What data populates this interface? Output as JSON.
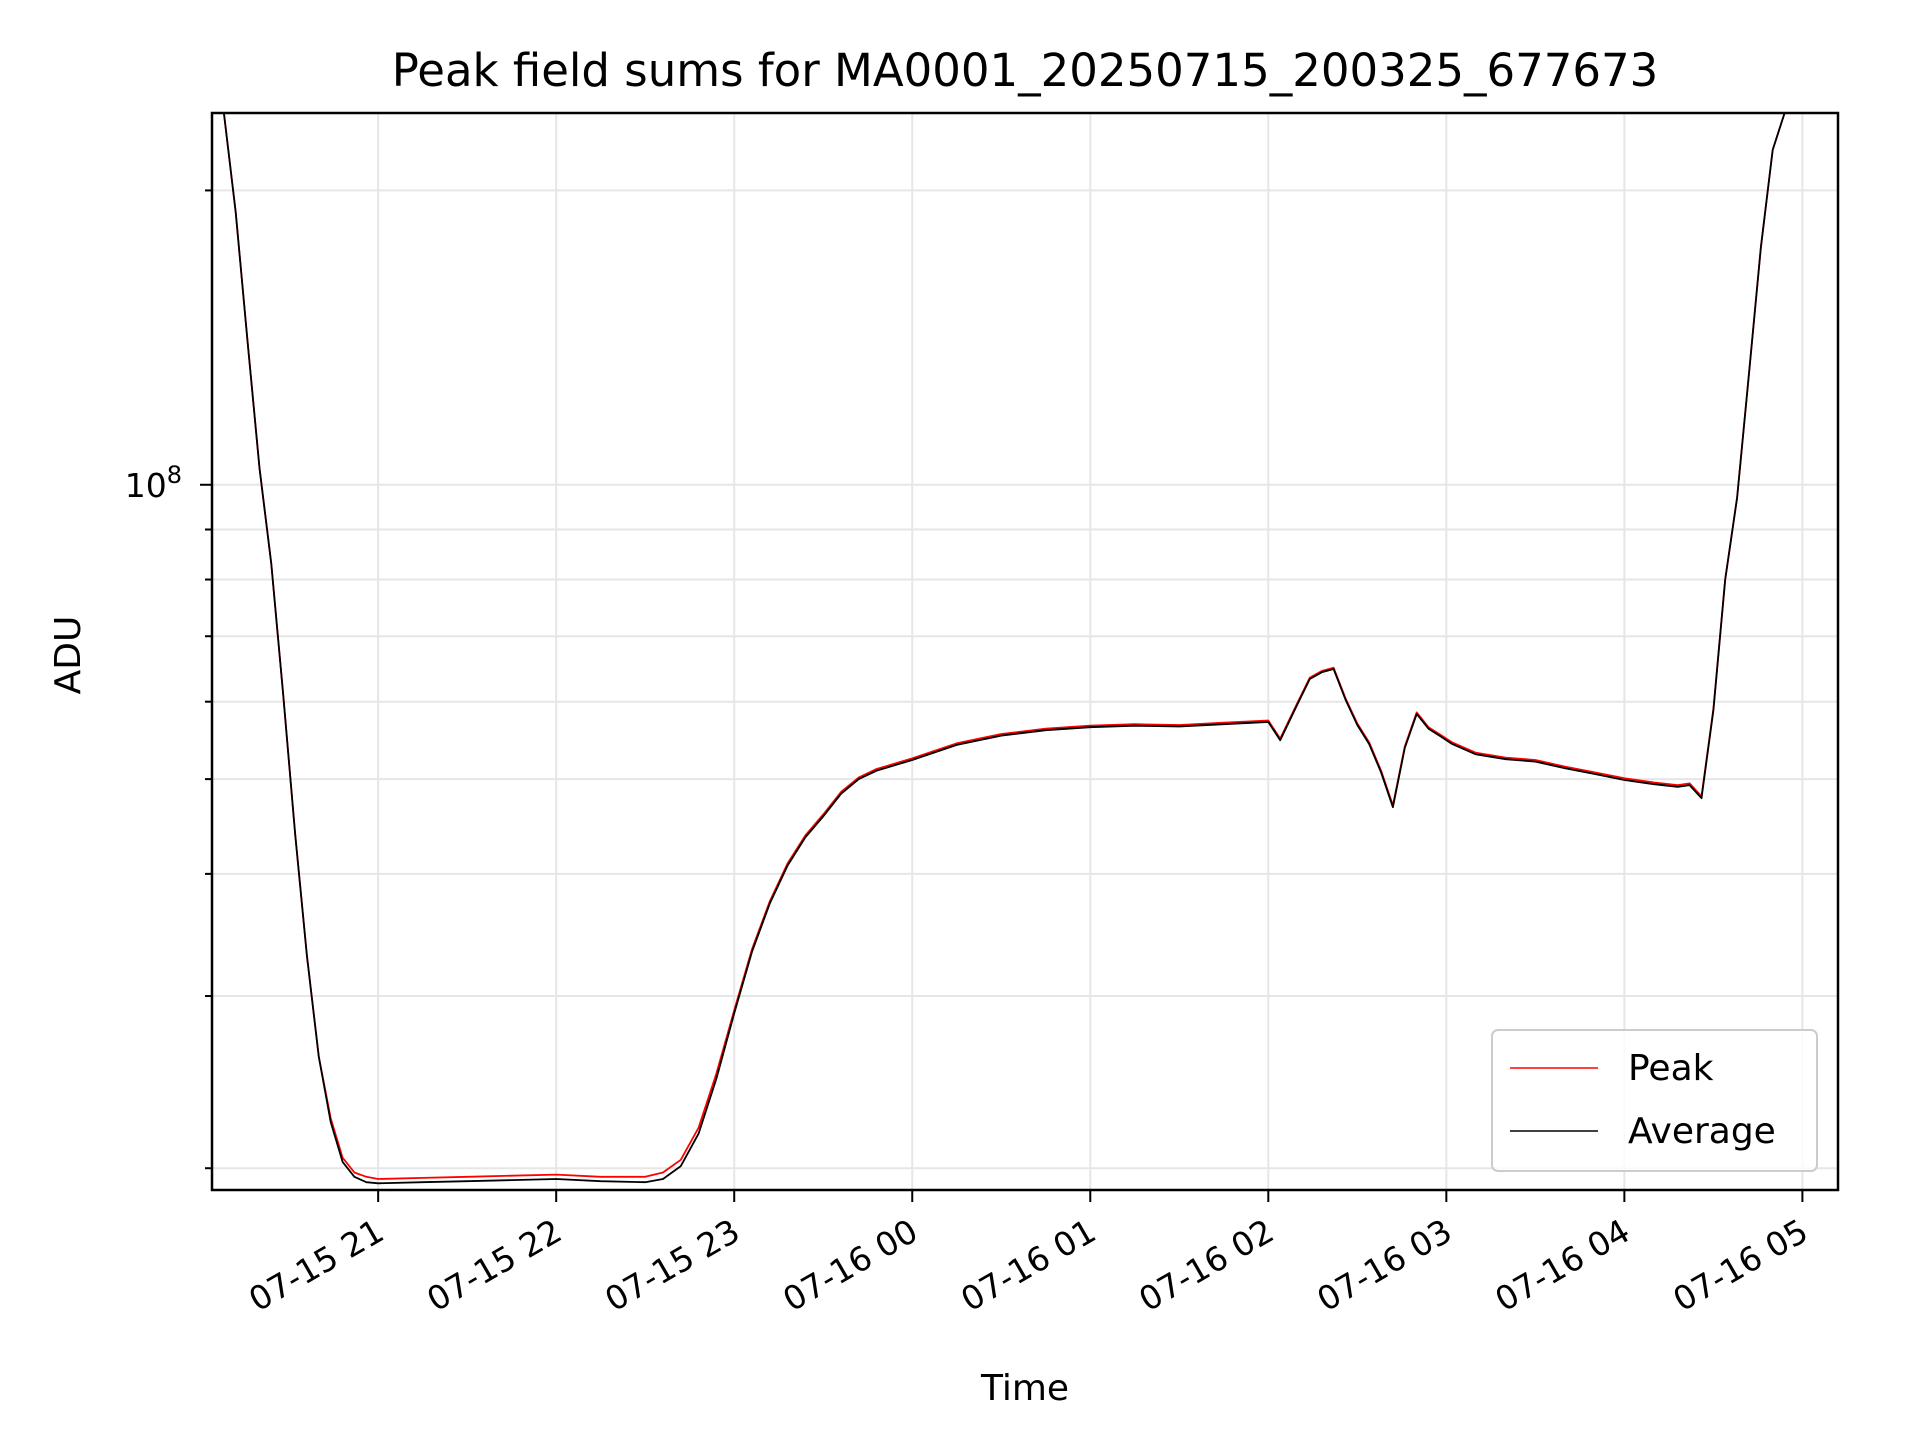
{
  "chart_data": {
    "type": "line",
    "title": "Peak field sums for MA0001_20250715_200325_677673",
    "xlabel": "Time",
    "ylabel": "ADU",
    "y_scale": "log",
    "grid": true,
    "legend_position": "lower-right",
    "x_tick_labels": [
      "07-15 21",
      "07-15 22",
      "07-15 23",
      "07-16 00",
      "07-16 01",
      "07-16 02",
      "07-16 03",
      "07-16 04",
      "07-16 05"
    ],
    "x_ticks": [
      "2025-07-15 21:00",
      "2025-07-15 22:00",
      "2025-07-15 23:00",
      "2025-07-16 00:00",
      "2025-07-16 01:00",
      "2025-07-16 02:00",
      "2025-07-16 03:00",
      "2025-07-16 04:00",
      "2025-07-16 05:00"
    ],
    "xlim": [
      "2025-07-15 20:04",
      "2025-07-16 05:12"
    ],
    "y_major_ticks": [
      {
        "value": 100000000,
        "label": "10",
        "exponent": "8"
      }
    ],
    "y_minor_ticks": [
      20000000,
      30000000,
      40000000,
      50000000,
      60000000,
      70000000,
      80000000,
      90000000,
      200000000
    ],
    "ylim": [
      19000000,
      240000000
    ],
    "series": [
      {
        "name": "Peak",
        "color": "#ff0000",
        "x": [
          "2025-07-15 20:04",
          "2025-07-15 20:08",
          "2025-07-15 20:12",
          "2025-07-15 20:16",
          "2025-07-15 20:20",
          "2025-07-15 20:24",
          "2025-07-15 20:28",
          "2025-07-15 20:32",
          "2025-07-15 20:36",
          "2025-07-15 20:40",
          "2025-07-15 20:44",
          "2025-07-15 20:48",
          "2025-07-15 20:52",
          "2025-07-15 20:56",
          "2025-07-15 21:00",
          "2025-07-15 21:15",
          "2025-07-15 21:30",
          "2025-07-15 21:45",
          "2025-07-15 22:00",
          "2025-07-15 22:15",
          "2025-07-15 22:30",
          "2025-07-15 22:36",
          "2025-07-15 22:42",
          "2025-07-15 22:48",
          "2025-07-15 22:54",
          "2025-07-15 23:00",
          "2025-07-15 23:06",
          "2025-07-15 23:12",
          "2025-07-15 23:18",
          "2025-07-15 23:24",
          "2025-07-15 23:30",
          "2025-07-15 23:36",
          "2025-07-15 23:42",
          "2025-07-15 23:48",
          "2025-07-16 00:00",
          "2025-07-16 00:15",
          "2025-07-16 00:30",
          "2025-07-16 00:45",
          "2025-07-16 01:00",
          "2025-07-16 01:15",
          "2025-07-16 01:30",
          "2025-07-16 01:45",
          "2025-07-16 02:00",
          "2025-07-16 02:04",
          "2025-07-16 02:10",
          "2025-07-16 02:14",
          "2025-07-16 02:18",
          "2025-07-16 02:22",
          "2025-07-16 02:26",
          "2025-07-16 02:30",
          "2025-07-16 02:34",
          "2025-07-16 02:38",
          "2025-07-16 02:42",
          "2025-07-16 02:46",
          "2025-07-16 02:50",
          "2025-07-16 02:54",
          "2025-07-16 02:58",
          "2025-07-16 03:02",
          "2025-07-16 03:10",
          "2025-07-16 03:20",
          "2025-07-16 03:30",
          "2025-07-16 03:40",
          "2025-07-16 03:50",
          "2025-07-16 04:00",
          "2025-07-16 04:10",
          "2025-07-16 04:18",
          "2025-07-16 04:22",
          "2025-07-16 04:26",
          "2025-07-16 04:30",
          "2025-07-16 04:34",
          "2025-07-16 04:38",
          "2025-07-16 04:42",
          "2025-07-16 04:46",
          "2025-07-16 04:50",
          "2025-07-16 04:54",
          "2025-07-16 04:56"
        ],
        "y": [
          240000000,
          240000000,
          190000000,
          140000000,
          104000000,
          83000000,
          61000000,
          44000000,
          33000000,
          26000000,
          22500000,
          20500000,
          19800000,
          19600000,
          19500000,
          19550000,
          19600000,
          19650000,
          19700000,
          19600000,
          19600000,
          19800000,
          20400000,
          22000000,
          25000000,
          29000000,
          33500000,
          37500000,
          41000000,
          43800000,
          46000000,
          48500000,
          50200000,
          51200000,
          52500000,
          54400000,
          55600000,
          56300000,
          56700000,
          56900000,
          56800000,
          57100000,
          57400000,
          55000000,
          60000000,
          63500000,
          64500000,
          65000000,
          60500000,
          57000000,
          54500000,
          51000000,
          47000000,
          54000000,
          58500000,
          56500000,
          55500000,
          54500000,
          53200000,
          52600000,
          52300000,
          51500000,
          50800000,
          50100000,
          49600000,
          49300000,
          49500000,
          48000000,
          59000000,
          80000000,
          97000000,
          130000000,
          175000000,
          220000000,
          240000000,
          240000000
        ]
      },
      {
        "name": "Average",
        "color": "#000000",
        "x": [
          "2025-07-15 20:04",
          "2025-07-15 20:08",
          "2025-07-15 20:12",
          "2025-07-15 20:16",
          "2025-07-15 20:20",
          "2025-07-15 20:24",
          "2025-07-15 20:28",
          "2025-07-15 20:32",
          "2025-07-15 20:36",
          "2025-07-15 20:40",
          "2025-07-15 20:44",
          "2025-07-15 20:48",
          "2025-07-15 20:52",
          "2025-07-15 20:56",
          "2025-07-15 21:00",
          "2025-07-15 21:15",
          "2025-07-15 21:30",
          "2025-07-15 21:45",
          "2025-07-15 22:00",
          "2025-07-15 22:15",
          "2025-07-15 22:30",
          "2025-07-15 22:36",
          "2025-07-15 22:42",
          "2025-07-15 22:48",
          "2025-07-15 22:54",
          "2025-07-15 23:00",
          "2025-07-15 23:06",
          "2025-07-15 23:12",
          "2025-07-15 23:18",
          "2025-07-15 23:24",
          "2025-07-15 23:30",
          "2025-07-15 23:36",
          "2025-07-15 23:42",
          "2025-07-15 23:48",
          "2025-07-16 00:00",
          "2025-07-16 00:15",
          "2025-07-16 00:30",
          "2025-07-16 00:45",
          "2025-07-16 01:00",
          "2025-07-16 01:15",
          "2025-07-16 01:30",
          "2025-07-16 01:45",
          "2025-07-16 02:00",
          "2025-07-16 02:04",
          "2025-07-16 02:10",
          "2025-07-16 02:14",
          "2025-07-16 02:18",
          "2025-07-16 02:22",
          "2025-07-16 02:26",
          "2025-07-16 02:30",
          "2025-07-16 02:34",
          "2025-07-16 02:38",
          "2025-07-16 02:42",
          "2025-07-16 02:46",
          "2025-07-16 02:50",
          "2025-07-16 02:54",
          "2025-07-16 02:58",
          "2025-07-16 03:02",
          "2025-07-16 03:10",
          "2025-07-16 03:20",
          "2025-07-16 03:30",
          "2025-07-16 03:40",
          "2025-07-16 03:50",
          "2025-07-16 04:00",
          "2025-07-16 04:10",
          "2025-07-16 04:18",
          "2025-07-16 04:22",
          "2025-07-16 04:26",
          "2025-07-16 04:30",
          "2025-07-16 04:34",
          "2025-07-16 04:38",
          "2025-07-16 04:42",
          "2025-07-16 04:46",
          "2025-07-16 04:50",
          "2025-07-16 04:54",
          "2025-07-16 04:56"
        ],
        "y": [
          240000000,
          240000000,
          190000000,
          140000000,
          104000000,
          83000000,
          61000000,
          44000000,
          33000000,
          26000000,
          22300000,
          20300000,
          19600000,
          19350000,
          19300000,
          19350000,
          19400000,
          19450000,
          19500000,
          19400000,
          19350000,
          19500000,
          20100000,
          21700000,
          24700000,
          28800000,
          33300000,
          37300000,
          40800000,
          43600000,
          45800000,
          48300000,
          50000000,
          51000000,
          52300000,
          54200000,
          55400000,
          56100000,
          56500000,
          56700000,
          56600000,
          56900000,
          57200000,
          54800000,
          59800000,
          63300000,
          64300000,
          64800000,
          60300000,
          56800000,
          54300000,
          50800000,
          46800000,
          53800000,
          58300000,
          56300000,
          55300000,
          54300000,
          53000000,
          52400000,
          52100000,
          51300000,
          50600000,
          49900000,
          49400000,
          49100000,
          49300000,
          47800000,
          58800000,
          80000000,
          97000000,
          130000000,
          175000000,
          220000000,
          240000000,
          240000000
        ]
      }
    ]
  }
}
